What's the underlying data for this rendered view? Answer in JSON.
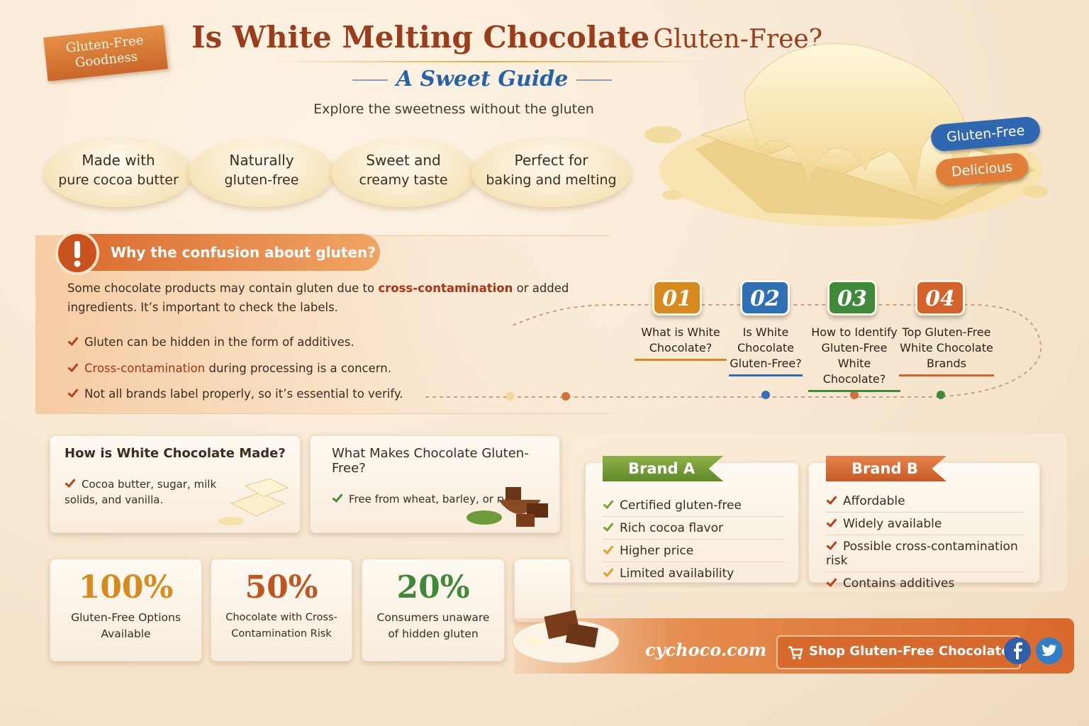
{
  "badge": "Gluten-Free Goodness",
  "header": {
    "title_main": "Is White Melting Chocolate",
    "title_tail": "Gluten-Free?",
    "subtitle": "A Sweet Guide",
    "tagline": "Explore the sweetness without the gluten"
  },
  "features": [
    {
      "line1": "Made with",
      "line2": "pure cocoa butter"
    },
    {
      "line1": "Naturally",
      "line2": "gluten-free"
    },
    {
      "line1": "Sweet and",
      "line2": "creamy taste"
    },
    {
      "line1": "Perfect for",
      "line2": "baking and melting"
    }
  ],
  "hero_tags": [
    "Gluten-Free",
    "Delicious"
  ],
  "confusion": {
    "heading": "Why the confusion about gluten?",
    "intro_before": "Some chocolate products may contain gluten due to",
    "intro_highlight": "cross-contamination",
    "intro_after": "or added ingredients. It’s important to check the labels.",
    "points": [
      {
        "rest": "Gluten can be hidden in the form of additives."
      },
      {
        "highlight": "Cross-contamination",
        "rest": "during processing is a concern."
      },
      {
        "rest": "Not all brands label properly, so it’s essential to verify."
      }
    ]
  },
  "steps": [
    {
      "number": "01",
      "label": "What is White Chocolate?",
      "color": "#d98a1f"
    },
    {
      "number": "02",
      "label": "Is White Chocolate Gluten-Free?",
      "color": "#2f6fb5"
    },
    {
      "number": "03",
      "label": "How to Identify Gluten-Free White Chocolate?",
      "color": "#3f8a3a"
    },
    {
      "number": "04",
      "label": "Top Gluten-Free White Chocolate Brands",
      "color": "#d4622a"
    }
  ],
  "cards": [
    {
      "title": "How is White Chocolate Made?",
      "items": [
        "Cocoa butter, sugar, milk solids, and vanilla."
      ]
    },
    {
      "title": "What Makes Chocolate Gluten-Free?",
      "items": [
        "Free from wheat, barley, or rye"
      ]
    }
  ],
  "brands": [
    {
      "name": "Brand A",
      "items": [
        "Certified gluten-free",
        "Rich cocoa flavor",
        "Higher price",
        "Limited availability"
      ]
    },
    {
      "name": "Brand B",
      "items": [
        "Affordable",
        "Widely available",
        "Possible cross-contamination risk",
        "Contains additives"
      ]
    }
  ],
  "stats": [
    {
      "value": "100%",
      "label": "Gluten-Free Options Available",
      "color": "#d98a1f"
    },
    {
      "value": "50%",
      "label": "Chocolate with Cross-Contamination Risk",
      "color": "#c0561f"
    },
    {
      "value": "20%",
      "label": "Consumers unaware of hidden gluten",
      "color": "#3f8a3a"
    }
  ],
  "footer": {
    "site": "cychoco.com",
    "button": "Shop Gluten-Free Chocolate"
  }
}
